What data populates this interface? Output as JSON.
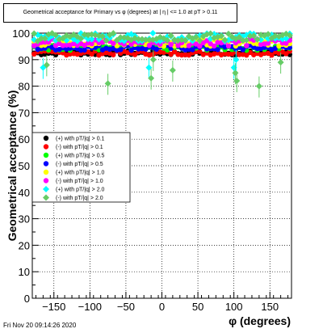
{
  "title": "Geometrical acceptance for Primary vs φ (degrees) at | η | <= 1.0 at pT > 0.11",
  "footer": "Fri Nov 20 09:14:26 2020",
  "chart_data": {
    "type": "scatter",
    "title": "Geometrical acceptance for Primary vs φ (degrees) at | η | <= 1.0 at pT > 0.11",
    "xlabel": "φ (degrees)",
    "ylabel": "Geometrical acceptance (%)",
    "xlim": [
      -180,
      180
    ],
    "ylim": [
      0,
      100
    ],
    "xticks": [
      -150,
      -100,
      -50,
      0,
      50,
      100,
      150
    ],
    "yticks": [
      0,
      10,
      20,
      30,
      40,
      50,
      60,
      70,
      80,
      90,
      100
    ],
    "grid": true,
    "legend_position": "left-middle",
    "series": [
      {
        "name": "(+) with pT/|q| > 0.1",
        "color": "#000000",
        "marker": "circle",
        "y_level": 92.5,
        "y_jitter": 0.8
      },
      {
        "name": "(-) with pT/|q| > 0.1",
        "color": "#ff0000",
        "marker": "circle",
        "y_level": 92.5,
        "y_jitter": 0.8
      },
      {
        "name": "(+) with pT/|q| > 0.5",
        "color": "#00ff00",
        "marker": "circle",
        "y_level": 94.5,
        "y_jitter": 1.0
      },
      {
        "name": "(-) with pT/|q| > 0.5",
        "color": "#0000ff",
        "marker": "circle",
        "y_level": 94.5,
        "y_jitter": 1.0
      },
      {
        "name": "(+) with pT/|q| > 1.0",
        "color": "#ffff00",
        "marker": "circle",
        "y_level": 96.5,
        "y_jitter": 1.4
      },
      {
        "name": "(-) with pT/|q| > 1.0",
        "color": "#ff00ff",
        "marker": "circle",
        "y_level": 96.5,
        "y_jitter": 1.4
      },
      {
        "name": "(+) with pT/|q| > 2.0",
        "color": "#00ffff",
        "marker": "diamond",
        "y_level": 98.5,
        "y_jitter": 1.5
      },
      {
        "name": "(-) with pT/|q| > 2.0",
        "color": "#66cc66",
        "marker": "diamond",
        "y_level": 98.5,
        "y_jitter": 1.5
      }
    ],
    "outliers": [
      {
        "series": 6,
        "x": -165,
        "y": 87
      },
      {
        "series": 7,
        "x": -160,
        "y": 88
      },
      {
        "series": 7,
        "x": -75,
        "y": 81
      },
      {
        "series": 6,
        "x": -18,
        "y": 87
      },
      {
        "series": 7,
        "x": -15,
        "y": 83
      },
      {
        "series": 7,
        "x": -12,
        "y": 90
      },
      {
        "series": 7,
        "x": 15,
        "y": 86
      },
      {
        "series": 6,
        "x": 100,
        "y": 87
      },
      {
        "series": 7,
        "x": 102,
        "y": 85
      },
      {
        "series": 7,
        "x": 104,
        "y": 82
      },
      {
        "series": 6,
        "x": 103,
        "y": 90
      },
      {
        "series": 7,
        "x": 135,
        "y": 80
      },
      {
        "series": 7,
        "x": 165,
        "y": 89
      }
    ]
  }
}
